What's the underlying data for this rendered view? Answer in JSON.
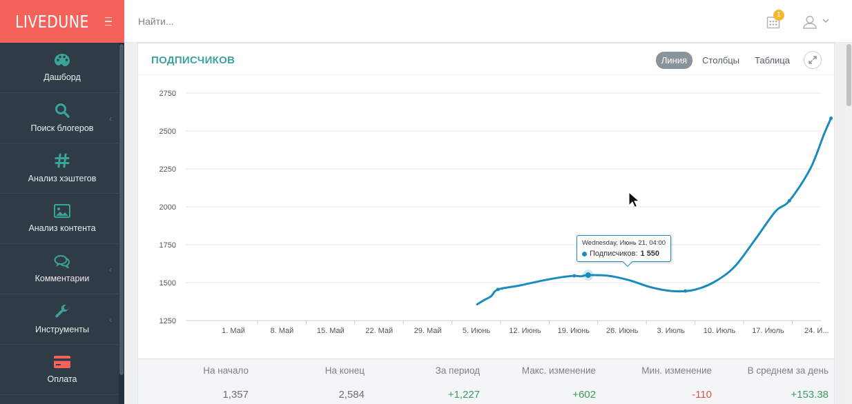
{
  "brand": {
    "logo": "LIVEDUNE"
  },
  "header": {
    "search_placeholder": "Найти...",
    "notification_count": "1"
  },
  "sidebar": {
    "items": [
      {
        "label": "Дашборд",
        "icon": "palette-icon",
        "has_submenu": false
      },
      {
        "label": "Поиск блогеров",
        "icon": "search-icon",
        "has_submenu": true
      },
      {
        "label": "Анализ хэштегов",
        "icon": "hashtag-icon",
        "has_submenu": false
      },
      {
        "label": "Анализ контента",
        "icon": "image-icon",
        "has_submenu": false
      },
      {
        "label": "Комментарии",
        "icon": "comments-icon",
        "has_submenu": true
      },
      {
        "label": "Инструменты",
        "icon": "wrench-icon",
        "has_submenu": true
      },
      {
        "label": "Оплата",
        "icon": "credit-card-icon",
        "has_submenu": false
      }
    ]
  },
  "panel": {
    "title": "ПОДПИСЧИКОВ",
    "tabs": [
      {
        "label": "Линия",
        "active": true
      },
      {
        "label": "Столбцы",
        "active": false
      },
      {
        "label": "Таблица",
        "active": false
      }
    ]
  },
  "tooltip": {
    "date": "Wednesday, Июнь 21, 04:00",
    "series_label": "Подписчиков:",
    "value": "1 550"
  },
  "chart_data": {
    "type": "line",
    "title": "ПОДПИСЧИКОВ",
    "ylim": [
      1250,
      2750
    ],
    "y_ticks": [
      1250,
      1500,
      1750,
      2000,
      2250,
      2500,
      2750
    ],
    "x_tick_labels": [
      "1. Май",
      "8. Май",
      "15. Май",
      "22. Май",
      "29. Май",
      "5. Июнь",
      "12. Июнь",
      "19. Июнь",
      "26. Июнь",
      "3. Июль",
      "10. Июль",
      "17. Июль",
      "24. И..."
    ],
    "x_start": "2017-04-25",
    "series": [
      {
        "name": "Подписчиков",
        "color": "#1a8bbd",
        "points": [
          [
            "2017-06-05",
            1357
          ],
          [
            "2017-06-06",
            1385
          ],
          [
            "2017-06-07",
            1410
          ],
          [
            "2017-06-08",
            1455
          ],
          [
            "2017-06-11",
            1480
          ],
          [
            "2017-06-14",
            1510
          ],
          [
            "2017-06-17",
            1535
          ],
          [
            "2017-06-19",
            1545
          ],
          [
            "2017-06-20",
            1542
          ],
          [
            "2017-06-21",
            1550
          ],
          [
            "2017-06-24",
            1545
          ],
          [
            "2017-06-27",
            1515
          ],
          [
            "2017-06-30",
            1470
          ],
          [
            "2017-07-03",
            1445
          ],
          [
            "2017-07-06",
            1450
          ],
          [
            "2017-07-09",
            1500
          ],
          [
            "2017-07-12",
            1600
          ],
          [
            "2017-07-15",
            1780
          ],
          [
            "2017-07-18",
            1970
          ],
          [
            "2017-07-20",
            2040
          ],
          [
            "2017-07-23",
            2250
          ],
          [
            "2017-07-25",
            2480
          ],
          [
            "2017-07-26",
            2584
          ]
        ],
        "markers": [
          "2017-06-08",
          "2017-06-19",
          "2017-06-21",
          "2017-07-05",
          "2017-07-20",
          "2017-07-26"
        ]
      }
    ]
  },
  "stats": [
    {
      "label": "На начало",
      "value": "1,357",
      "tone": "neutral"
    },
    {
      "label": "На конец",
      "value": "2,584",
      "tone": "neutral"
    },
    {
      "label": "За период",
      "value": "+1,227",
      "tone": "pos"
    },
    {
      "label": "Макс. изменение",
      "value": "+602",
      "tone": "pos"
    },
    {
      "label": "Мин. изменение",
      "value": "-110",
      "tone": "neg"
    },
    {
      "label": "В среднем за день",
      "value": "+153.38",
      "tone": "pos"
    }
  ]
}
